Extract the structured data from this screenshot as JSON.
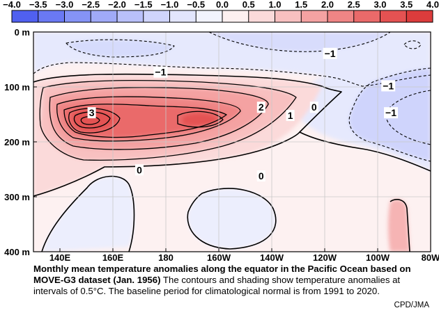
{
  "chart_data": {
    "type": "heatmap",
    "title": "",
    "colorbar": {
      "ticks": [
        "−4.0",
        "−3.5",
        "−3.0",
        "−2.5",
        "−2.0",
        "−1.5",
        "−1.0",
        "−0.5",
        "0.0",
        "0.5",
        "1.0",
        "1.5",
        "2.0",
        "2.5",
        "3.0",
        "3.5",
        "4.0"
      ],
      "colors": [
        "#5060f0",
        "#6a79f3",
        "#8593f6",
        "#a0aaf8",
        "#b9c0fa",
        "#cfd4fc",
        "#e2e5fd",
        "#f2f3fe",
        "#fdf0f0",
        "#fbdada",
        "#f8c0c0",
        "#f4a2a2",
        "#ef8585",
        "#ea6a6a",
        "#e45252",
        "#dc3c3c"
      ]
    },
    "x_axis": {
      "labels": [
        "140E",
        "160E",
        "180",
        "160W",
        "140W",
        "120W",
        "100W",
        "80W"
      ],
      "unit": "longitude"
    },
    "y_axis": {
      "labels": [
        "0 m",
        "100 m",
        "200 m",
        "300 m",
        "400 m"
      ],
      "unit": "depth",
      "ylim": [
        0,
        400
      ]
    },
    "contour_interval": 0.5,
    "contour_labels": [
      {
        "text": "−1",
        "lon": 178,
        "depth": 73
      },
      {
        "text": "−1",
        "lon": 242,
        "depth": 39
      },
      {
        "text": "−1",
        "lon": 264,
        "depth": 98
      },
      {
        "text": "−1",
        "lon": 265,
        "depth": 147
      },
      {
        "text": "3",
        "lon": 152,
        "depth": 147
      },
      {
        "text": "2",
        "lon": 216,
        "depth": 137
      },
      {
        "text": "1",
        "lon": 227,
        "depth": 152
      },
      {
        "text": "0",
        "lon": 236,
        "depth": 137
      },
      {
        "text": "0",
        "lon": 170,
        "depth": 251
      },
      {
        "text": "0",
        "lon": 216,
        "depth": 262
      }
    ]
  },
  "caption": {
    "bold": "Monthly mean temperature anomalies along the equator in the Pacific Ocean based on MOVE-G3 dataset (Jan. 1956)",
    "normal": " The contours and shading show temperature anomalies at intervals of 0.5°C.  The baseline period for climatological normal is from 1991 to 2020."
  },
  "credit": "CPD/JMA"
}
